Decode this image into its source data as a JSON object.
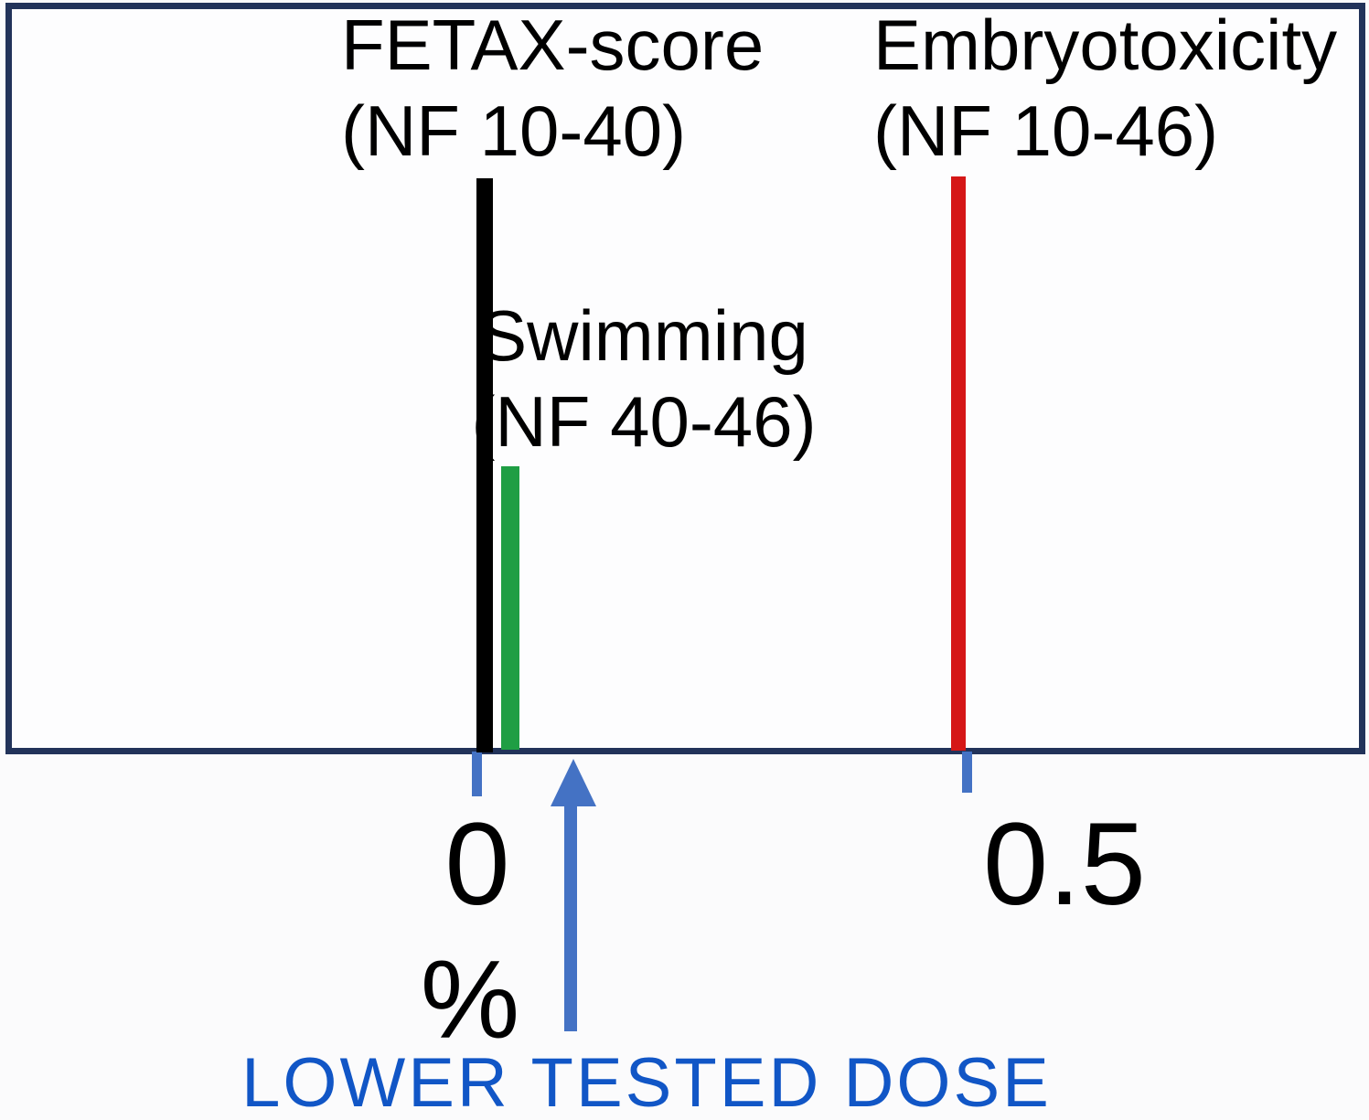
{
  "markers": {
    "fetax": {
      "label_line1": "FETAX-score",
      "label_line2": "(NF 10-40)",
      "color": "#000000"
    },
    "swimming": {
      "label_line1": "Swimming",
      "label_line2": "(NF 40-46)",
      "color": "#1f9e44"
    },
    "embryotoxicity": {
      "label_line1": "Embryotoxicity",
      "label_line2": "(NF 10-46)",
      "color": "#d51717"
    }
  },
  "axis": {
    "tick_labels": [
      "0",
      "0.5"
    ],
    "unit_label": "%",
    "tick_color": "#4472c4",
    "line_color": "#22335a"
  },
  "annotation": {
    "text": "LOWER TESTED DOSE",
    "color": "#1156c6",
    "arrow_color": "#4472c4"
  },
  "chart_data": {
    "type": "bar",
    "title": "",
    "xlabel": "%",
    "ylabel": "",
    "x_ticks": [
      0,
      0.5
    ],
    "x_range": [
      -0.48,
      0.91
    ],
    "grid": false,
    "legend_position": "none",
    "series": [
      {
        "name": "FETAX-score (NF 10-40)",
        "x": 0.01,
        "color": "#000000",
        "relative_height": 0.77
      },
      {
        "name": "Swimming (NF 40-46)",
        "x": 0.03,
        "color": "#1f9e44",
        "relative_height": 0.38
      },
      {
        "name": "Embryotoxicity (NF 10-46)",
        "x": 0.49,
        "color": "#d51717",
        "relative_height": 0.77
      }
    ],
    "annotations": [
      {
        "text": "LOWER TESTED DOSE",
        "x": 0.1,
        "arrow_direction": "up",
        "color": "#1156c6"
      }
    ]
  }
}
